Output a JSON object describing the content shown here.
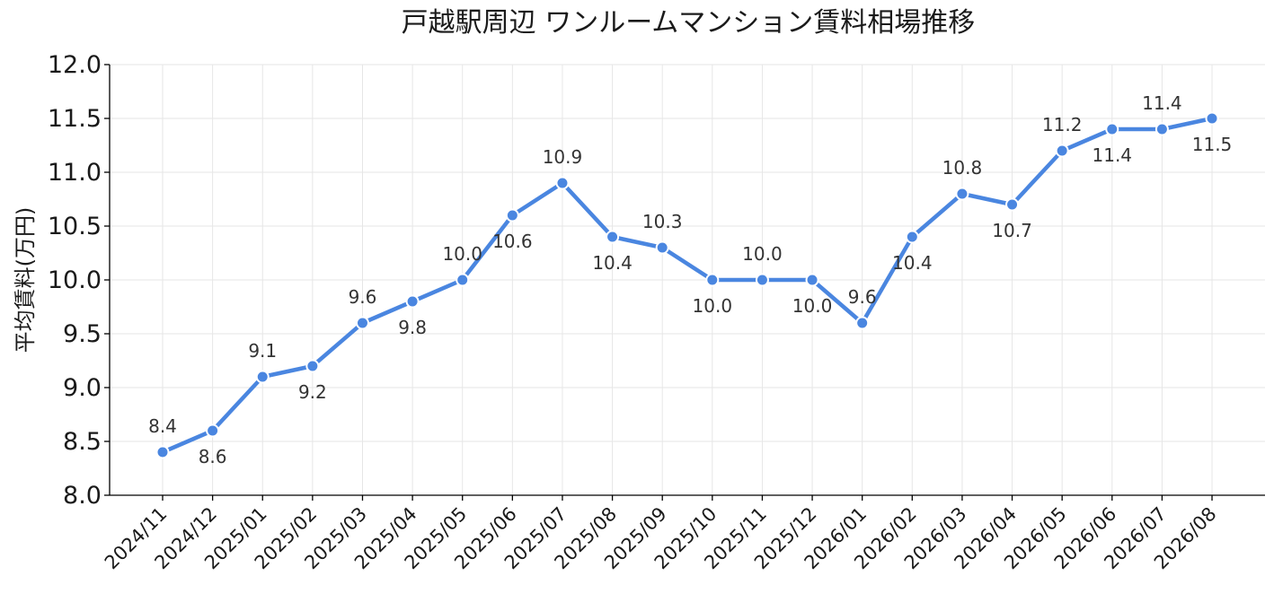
{
  "chart_data": {
    "type": "line",
    "title": "戸越駅周辺 ワンルームマンション賃料相場推移",
    "xlabel": "",
    "ylabel": "平均賃料(万円)",
    "ylim": [
      8.0,
      12.0
    ],
    "yticks": [
      "8.0",
      "8.5",
      "9.0",
      "9.5",
      "10.0",
      "10.5",
      "11.0",
      "11.5",
      "12.0"
    ],
    "grid": true,
    "categories": [
      "2024/11",
      "2024/12",
      "2025/01",
      "2025/02",
      "2025/03",
      "2025/04",
      "2025/05",
      "2025/06",
      "2025/07",
      "2025/08",
      "2025/09",
      "2025/10",
      "2025/11",
      "2025/12",
      "2026/01",
      "2026/02",
      "2026/03",
      "2026/04",
      "2026/05",
      "2026/06",
      "2026/07",
      "2026/08"
    ],
    "values": [
      8.4,
      8.6,
      9.1,
      9.2,
      9.6,
      9.8,
      10.0,
      10.6,
      10.9,
      10.4,
      10.3,
      10.0,
      10.0,
      10.0,
      9.6,
      10.4,
      10.8,
      10.7,
      11.2,
      11.4,
      11.4,
      11.5
    ],
    "data_labels": [
      "8.4",
      "8.6",
      "9.1",
      "9.2",
      "9.6",
      "9.8",
      "10.0",
      "10.6",
      "10.9",
      "10.4",
      "10.3",
      "10.0",
      "10.0",
      "10.0",
      "9.6",
      "10.4",
      "10.8",
      "10.7",
      "11.2",
      "11.4",
      "11.4",
      "11.5"
    ],
    "label_positions": [
      "above",
      "below",
      "above",
      "below",
      "above",
      "below",
      "above",
      "below",
      "above",
      "below",
      "above",
      "below",
      "above",
      "below",
      "above",
      "below",
      "above",
      "below",
      "above",
      "below",
      "above",
      "below"
    ],
    "colors": {
      "line": "#4a86e0",
      "marker": "#4a86e0",
      "marker_edge": "#ffffff"
    }
  }
}
